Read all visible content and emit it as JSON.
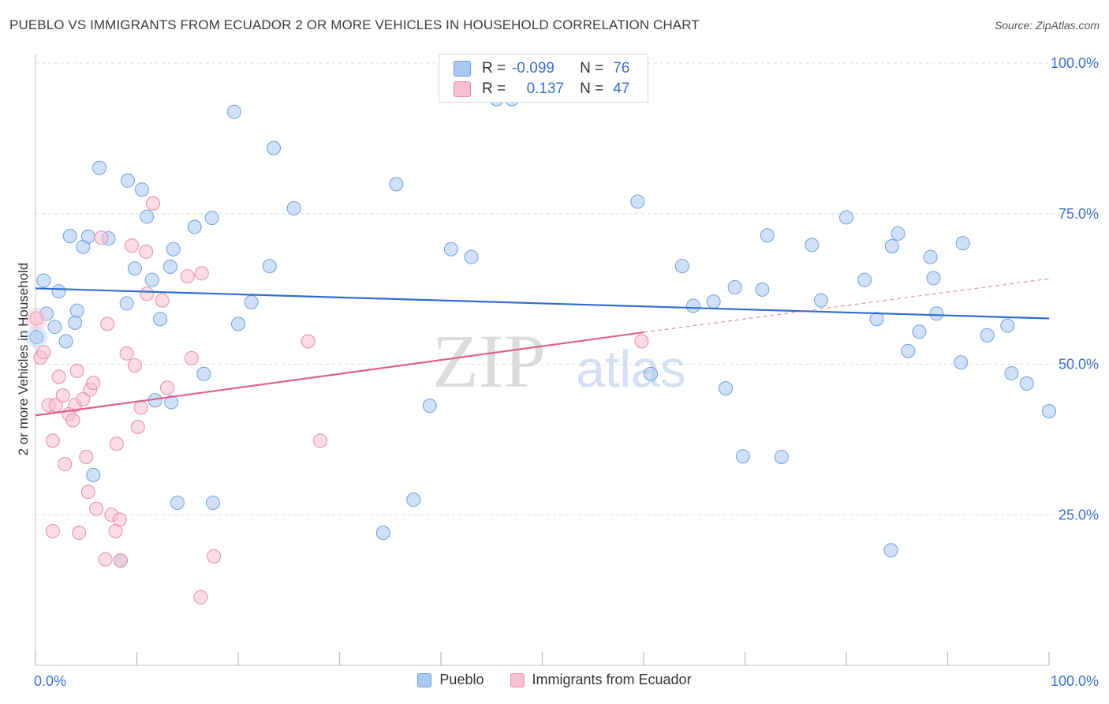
{
  "title": "PUEBLO VS IMMIGRANTS FROM ECUADOR 2 OR MORE VEHICLES IN HOUSEHOLD CORRELATION CHART",
  "source": "Source: ZipAtlas.com",
  "watermark": {
    "zip": "ZIP",
    "atlas": "atlas"
  },
  "stats": [
    {
      "r_label": "R =",
      "r_value": "-0.099",
      "n_label": "N =",
      "n_value": "76",
      "color": "#a9c8f0",
      "border": "#6f9fdc"
    },
    {
      "r_label": "R =",
      "r_value": "0.137",
      "n_label": "N =",
      "n_value": "47",
      "color": "#f7bfd0",
      "border": "#e48ca8"
    }
  ],
  "legend": [
    {
      "label": "Pueblo",
      "color": "#a9c8f0",
      "border": "#6f9fdc"
    },
    {
      "label": "Immigrants from Ecuador",
      "color": "#f7bfd0",
      "border": "#e48ca8"
    }
  ],
  "chart_data": {
    "type": "scatter",
    "title": "PUEBLO VS IMMIGRANTS FROM ECUADOR 2 OR MORE VEHICLES IN HOUSEHOLD CORRELATION CHART",
    "xlabel": "",
    "ylabel": "2 or more Vehicles in Household",
    "xlim": [
      0,
      100
    ],
    "ylim": [
      0,
      100
    ],
    "x_tick_labels": [
      "0.0%",
      "100.0%"
    ],
    "y_tick_values": [
      25,
      50,
      75,
      100
    ],
    "y_tick_labels": [
      "25.0%",
      "50.0%",
      "75.0%",
      "100.0%"
    ],
    "grid": true,
    "series": [
      {
        "name": "Pueblo",
        "color": "#a9c8f0",
        "stroke": "#6f9fdc",
        "line_color": "#2f6fd0",
        "trend": {
          "x": [
            0,
            100
          ],
          "y": [
            62.6,
            57.6
          ]
        },
        "points": [
          [
            0.1,
            54.5
          ],
          [
            0.8,
            63.9
          ],
          [
            1.1,
            58.4
          ],
          [
            1.9,
            56.2
          ],
          [
            2.3,
            62.1
          ],
          [
            3.0,
            53.8
          ],
          [
            3.4,
            71.3
          ],
          [
            3.9,
            56.9
          ],
          [
            4.1,
            58.9
          ],
          [
            4.7,
            69.5
          ],
          [
            5.2,
            71.2
          ],
          [
            5.7,
            31.6
          ],
          [
            6.3,
            82.6
          ],
          [
            7.2,
            70.9
          ],
          [
            8.4,
            17.4
          ],
          [
            9.0,
            60.1
          ],
          [
            9.1,
            80.5
          ],
          [
            9.8,
            65.9
          ],
          [
            10.5,
            79.0
          ],
          [
            11.0,
            74.5
          ],
          [
            11.5,
            64.0
          ],
          [
            11.8,
            44.0
          ],
          [
            12.3,
            57.5
          ],
          [
            13.3,
            66.2
          ],
          [
            13.4,
            43.7
          ],
          [
            13.6,
            69.1
          ],
          [
            14.0,
            27.0
          ],
          [
            15.7,
            72.8
          ],
          [
            16.6,
            48.4
          ],
          [
            17.4,
            74.3
          ],
          [
            17.5,
            27.0
          ],
          [
            19.6,
            91.9
          ],
          [
            20.0,
            56.7
          ],
          [
            21.3,
            60.3
          ],
          [
            23.1,
            66.3
          ],
          [
            23.5,
            85.9
          ],
          [
            25.5,
            75.9
          ],
          [
            34.3,
            22.0
          ],
          [
            35.6,
            79.9
          ],
          [
            37.3,
            27.5
          ],
          [
            38.9,
            43.1
          ],
          [
            41.0,
            69.1
          ],
          [
            43.0,
            67.8
          ],
          [
            45.5,
            94.0
          ],
          [
            47.0,
            94.0
          ],
          [
            59.4,
            77.0
          ],
          [
            60.7,
            48.4
          ],
          [
            63.8,
            66.3
          ],
          [
            64.9,
            59.7
          ],
          [
            66.9,
            60.4
          ],
          [
            68.1,
            46.0
          ],
          [
            69.0,
            62.8
          ],
          [
            69.8,
            34.7
          ],
          [
            71.7,
            62.4
          ],
          [
            72.2,
            71.4
          ],
          [
            73.6,
            34.6
          ],
          [
            76.6,
            69.8
          ],
          [
            77.5,
            60.6
          ],
          [
            80.0,
            74.4
          ],
          [
            81.8,
            64.0
          ],
          [
            83.0,
            57.5
          ],
          [
            84.4,
            19.1
          ],
          [
            84.5,
            69.6
          ],
          [
            85.1,
            71.7
          ],
          [
            86.1,
            52.2
          ],
          [
            87.2,
            55.4
          ],
          [
            88.3,
            67.8
          ],
          [
            88.6,
            64.3
          ],
          [
            88.9,
            58.4
          ],
          [
            91.3,
            50.3
          ],
          [
            91.5,
            70.1
          ],
          [
            93.9,
            54.8
          ],
          [
            95.9,
            56.4
          ],
          [
            96.3,
            48.5
          ],
          [
            97.8,
            46.8
          ],
          [
            100.0,
            42.2
          ]
        ]
      },
      {
        "name": "Immigrants from Ecuador",
        "color": "#f7bfd0",
        "stroke": "#e48ca8",
        "line_color": "#e0608a",
        "trend": {
          "x": [
            0,
            60
          ],
          "y": [
            41.5,
            55.3
          ]
        },
        "trend_extension": {
          "x": [
            60,
            100
          ],
          "y": [
            55.3,
            64.2
          ]
        },
        "points": [
          [
            0.1,
            57.6
          ],
          [
            0.5,
            51.1
          ],
          [
            0.8,
            52.0
          ],
          [
            1.3,
            43.2
          ],
          [
            1.7,
            22.3
          ],
          [
            1.7,
            37.3
          ],
          [
            2.0,
            43.2
          ],
          [
            2.3,
            47.9
          ],
          [
            2.7,
            44.8
          ],
          [
            2.9,
            33.4
          ],
          [
            3.3,
            41.7
          ],
          [
            3.7,
            40.7
          ],
          [
            3.9,
            43.2
          ],
          [
            4.1,
            48.9
          ],
          [
            4.3,
            22.0
          ],
          [
            4.7,
            44.2
          ],
          [
            5.0,
            34.6
          ],
          [
            5.2,
            28.8
          ],
          [
            5.4,
            45.8
          ],
          [
            5.7,
            46.9
          ],
          [
            6.0,
            26.0
          ],
          [
            6.5,
            71.0
          ],
          [
            6.9,
            17.6
          ],
          [
            7.1,
            56.7
          ],
          [
            7.5,
            25.0
          ],
          [
            7.9,
            22.3
          ],
          [
            8.0,
            36.8
          ],
          [
            8.3,
            24.2
          ],
          [
            8.4,
            17.4
          ],
          [
            9.0,
            51.8
          ],
          [
            9.5,
            69.7
          ],
          [
            9.8,
            49.8
          ],
          [
            10.1,
            39.6
          ],
          [
            10.4,
            42.8
          ],
          [
            10.9,
            68.7
          ],
          [
            11.0,
            61.7
          ],
          [
            11.6,
            76.7
          ],
          [
            12.5,
            60.6
          ],
          [
            13.0,
            46.1
          ],
          [
            15.0,
            64.6
          ],
          [
            15.4,
            51.0
          ],
          [
            16.4,
            65.1
          ],
          [
            16.3,
            11.3
          ],
          [
            17.6,
            18.1
          ],
          [
            26.9,
            53.8
          ],
          [
            28.1,
            37.3
          ],
          [
            59.8,
            53.8
          ]
        ]
      }
    ]
  }
}
